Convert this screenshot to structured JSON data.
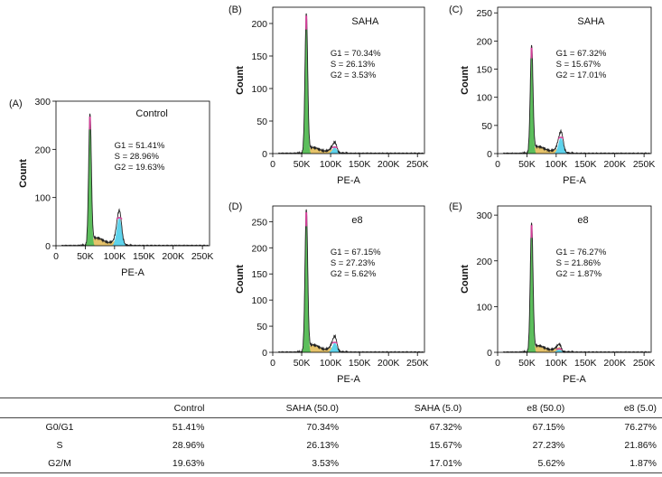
{
  "colors": {
    "g1": "#5cbe5c",
    "s": "#e3bd5a",
    "g2": "#5ed3ec",
    "curve": "#222222",
    "peak_marker": "#d6409a",
    "axis": "#000000"
  },
  "chart_data": [
    {
      "type": "area",
      "panel": "(A)",
      "title": "Control",
      "xlabel": "PE-A",
      "ylabel": "Count",
      "xlim": [
        0,
        262144
      ],
      "ylim": [
        0,
        300
      ],
      "xticks": [
        0,
        50000,
        100000,
        150000,
        200000,
        250000
      ],
      "xtick_labels": [
        "0",
        "50K",
        "100K",
        "150K",
        "200K",
        "250K"
      ],
      "yticks": [
        0,
        100,
        200,
        300
      ],
      "ytick_labels": [
        "0",
        "100",
        "200",
        "300"
      ],
      "annotations": [
        "G1 = 51.41%",
        "S = 28.96%",
        "G2 = 19.63%"
      ],
      "g1_peak": {
        "x": 58000,
        "count": 268
      },
      "g2_peak": {
        "x": 108000,
        "count": 58
      },
      "s_level": 16,
      "series": [
        {
          "name": "G1",
          "percent": 51.41
        },
        {
          "name": "S",
          "percent": 28.96
        },
        {
          "name": "G2",
          "percent": 19.63
        }
      ]
    },
    {
      "type": "area",
      "panel": "(B)",
      "title": "SAHA",
      "xlabel": "PE-A",
      "ylabel": "Count",
      "xlim": [
        0,
        262144
      ],
      "ylim": [
        0,
        225
      ],
      "xticks": [
        0,
        50000,
        100000,
        150000,
        200000,
        250000
      ],
      "xtick_labels": [
        "0",
        "50K",
        "100K",
        "150K",
        "200K",
        "250K"
      ],
      "yticks": [
        0,
        50,
        100,
        150,
        200
      ],
      "ytick_labels": [
        "0",
        "50",
        "100",
        "150",
        "200"
      ],
      "annotations": [
        "G1 = 70.34%",
        "S = 26.13%",
        "G2 = 3.53%"
      ],
      "g1_peak": {
        "x": 58000,
        "count": 212
      },
      "g2_peak": {
        "x": 107000,
        "count": 9
      },
      "s_level": 9,
      "series": [
        {
          "name": "G1",
          "percent": 70.34
        },
        {
          "name": "S",
          "percent": 26.13
        },
        {
          "name": "G2",
          "percent": 3.53
        }
      ]
    },
    {
      "type": "area",
      "panel": "(C)",
      "title": "SAHA",
      "xlabel": "PE-A",
      "ylabel": "Count",
      "xlim": [
        0,
        262144
      ],
      "ylim": [
        0,
        260
      ],
      "xticks": [
        0,
        50000,
        100000,
        150000,
        200000,
        250000
      ],
      "xtick_labels": [
        "0",
        "50K",
        "100K",
        "150K",
        "200K",
        "250K"
      ],
      "yticks": [
        0,
        50,
        100,
        150,
        200,
        250
      ],
      "ytick_labels": [
        "0",
        "50",
        "100",
        "150",
        "200",
        "250"
      ],
      "annotations": [
        "G1 = 67.32%",
        "S = 15.67%",
        "G2 = 17.01%"
      ],
      "g1_peak": {
        "x": 58000,
        "count": 188
      },
      "g2_peak": {
        "x": 108000,
        "count": 28
      },
      "s_level": 12,
      "series": [
        {
          "name": "G1",
          "percent": 67.32
        },
        {
          "name": "S",
          "percent": 15.67
        },
        {
          "name": "G2",
          "percent": 17.01
        }
      ]
    },
    {
      "type": "area",
      "panel": "(D)",
      "title": "e8",
      "xlabel": "PE-A",
      "ylabel": "Count",
      "xlim": [
        0,
        262144
      ],
      "ylim": [
        0,
        280
      ],
      "xticks": [
        0,
        50000,
        100000,
        150000,
        200000,
        250000
      ],
      "xtick_labels": [
        "0",
        "50K",
        "100K",
        "150K",
        "200K",
        "250K"
      ],
      "yticks": [
        0,
        50,
        100,
        150,
        200,
        250
      ],
      "ytick_labels": [
        "0",
        "50",
        "100",
        "150",
        "200",
        "250"
      ],
      "annotations": [
        "G1 = 67.15%",
        "S = 27.23%",
        "G2 = 5.62%"
      ],
      "g1_peak": {
        "x": 58000,
        "count": 268
      },
      "g2_peak": {
        "x": 107000,
        "count": 18
      },
      "s_level": 14,
      "series": [
        {
          "name": "G1",
          "percent": 67.15
        },
        {
          "name": "S",
          "percent": 27.23
        },
        {
          "name": "G2",
          "percent": 5.62
        }
      ]
    },
    {
      "type": "area",
      "panel": "(E)",
      "title": "e8",
      "xlabel": "PE-A",
      "ylabel": "Count",
      "xlim": [
        0,
        262144
      ],
      "ylim": [
        0,
        320
      ],
      "xticks": [
        0,
        50000,
        100000,
        150000,
        200000,
        250000
      ],
      "xtick_labels": [
        "0",
        "50K",
        "100K",
        "150K",
        "200K",
        "250K"
      ],
      "yticks": [
        0,
        100,
        200,
        300
      ],
      "ytick_labels": [
        "0",
        "100",
        "200",
        "300"
      ],
      "annotations": [
        "G1 = 76.27%",
        "S = 21.86%",
        "G2 = 1.87%"
      ],
      "g1_peak": {
        "x": 58000,
        "count": 278
      },
      "g2_peak": {
        "x": 105000,
        "count": 6
      },
      "s_level": 14,
      "series": [
        {
          "name": "G1",
          "percent": 76.27
        },
        {
          "name": "S",
          "percent": 21.86
        },
        {
          "name": "G2",
          "percent": 1.87
        }
      ]
    },
    {
      "type": "table",
      "columns": [
        "",
        "Control",
        "SAHA (50.0)",
        "SAHA (5.0)",
        "e8 (50.0)",
        "e8 (5.0)"
      ],
      "rows": [
        {
          "label": "G0/G1",
          "values": [
            "51.41%",
            "70.34%",
            "67.32%",
            "67.15%",
            "76.27%"
          ]
        },
        {
          "label": "S",
          "values": [
            "28.96%",
            "26.13%",
            "15.67%",
            "27.23%",
            "21.86%"
          ]
        },
        {
          "label": "G2/M",
          "values": [
            "19.63%",
            "3.53%",
            "17.01%",
            "5.62%",
            "1.87%"
          ]
        }
      ]
    }
  ]
}
